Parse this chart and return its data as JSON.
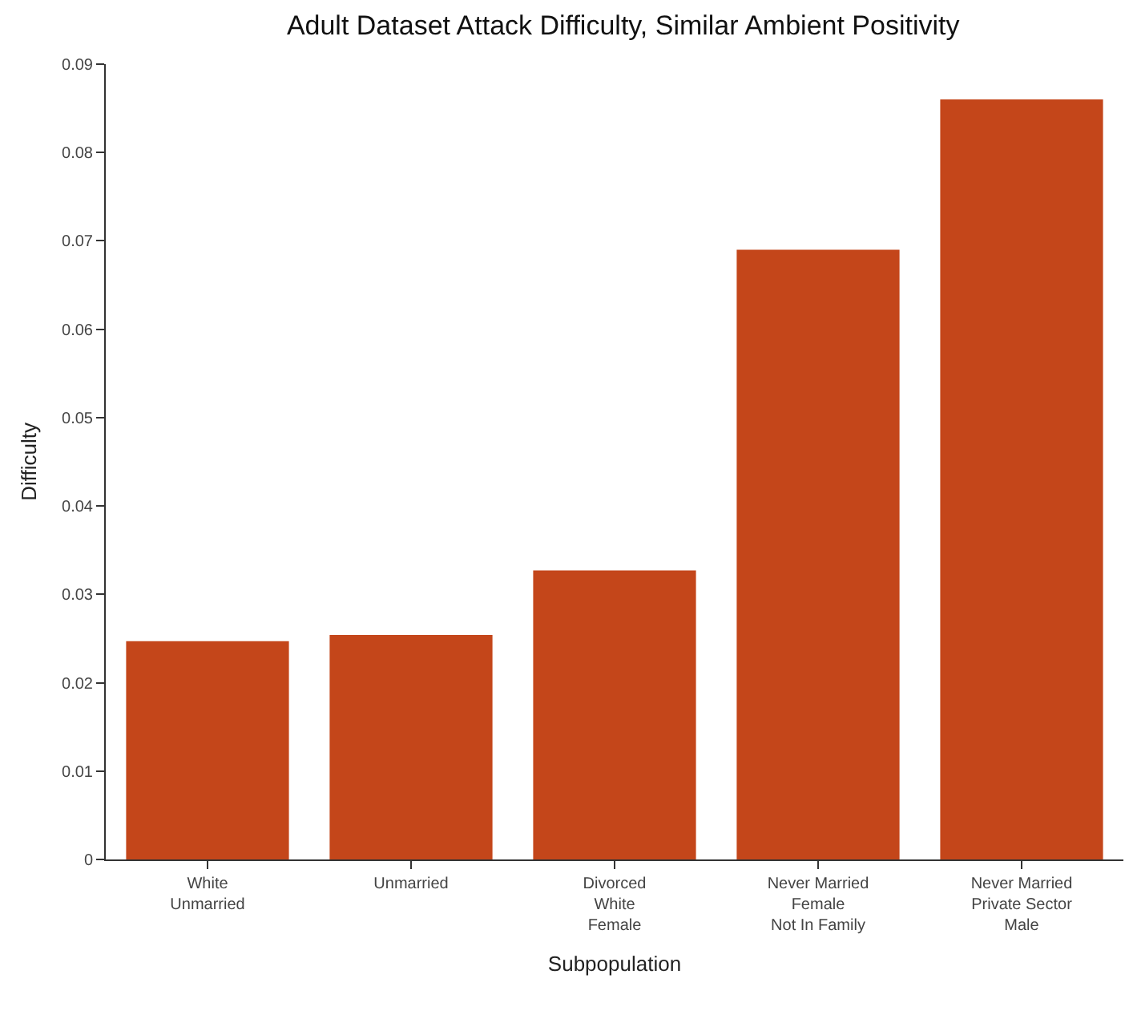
{
  "chart_data": {
    "type": "bar",
    "title": "Adult Dataset Attack Difficulty, Similar Ambient Positivity",
    "xlabel": "Subpopulation",
    "ylabel": "Difficulty",
    "categories": [
      "White\nUnmarried",
      "Unmarried",
      "Divorced\nWhite\nFemale",
      "Never Married\nFemale\nNot In Family",
      "Never Married\nPrivate Sector\nMale"
    ],
    "values": [
      0.0247,
      0.0254,
      0.0327,
      0.069,
      0.086
    ],
    "color": "#c4461a",
    "ylim": [
      0,
      0.09
    ],
    "yticks": [
      0,
      0.01,
      0.02,
      0.03,
      0.04,
      0.05,
      0.06,
      0.07,
      0.08,
      0.09
    ],
    "grid": false,
    "legend": false
  }
}
